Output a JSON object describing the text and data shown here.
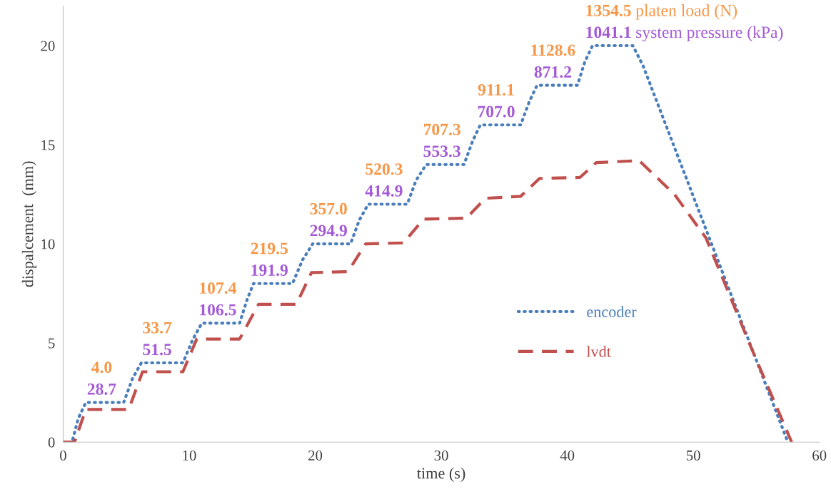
{
  "chart_data": {
    "type": "line",
    "xlabel": "time (s)",
    "ylabel": "dispalcement  (mm)",
    "xlim": [
      0,
      60
    ],
    "xticks": [
      0,
      10,
      20,
      30,
      40,
      50,
      60
    ],
    "ylim": [
      0,
      22
    ],
    "yticks": [
      0,
      5,
      10,
      15,
      20
    ],
    "grid": false,
    "legend": "center right",
    "series": [
      {
        "name": "encoder",
        "color": "#4a7ebb",
        "line_style": "dotted",
        "x": [
          0,
          0.7,
          1.2,
          1.8,
          4.8,
          5.5,
          6.2,
          9.5,
          10.3,
          11.0,
          14.0,
          14.6,
          15.1,
          18.2,
          19.0,
          19.8,
          22.8,
          23.5,
          24.2,
          27.3,
          28.0,
          28.8,
          31.8,
          32.5,
          33.1,
          36.3,
          37.0,
          37.6,
          40.8,
          41.4,
          42.0,
          45.2,
          46.0,
          57.5
        ],
        "values": [
          0,
          0,
          1.2,
          2,
          2,
          3.2,
          4,
          4,
          5.2,
          6,
          6,
          7.2,
          8,
          8,
          9.2,
          10,
          10,
          11.2,
          12,
          12,
          13.2,
          14,
          14,
          15.2,
          16,
          16,
          17.2,
          18,
          18,
          19.2,
          20,
          20,
          19.0,
          0
        ]
      },
      {
        "name": "lvdt",
        "color": "#c0504d",
        "line_style": "dashed",
        "x": [
          0,
          0.9,
          1.8,
          5.2,
          6.3,
          9.5,
          10.6,
          14.0,
          15.5,
          18.5,
          19.7,
          22.6,
          24.0,
          27.0,
          28.6,
          32.0,
          33.5,
          36.3,
          37.8,
          41.0,
          42.3,
          45.7,
          48.5,
          51.0,
          52.5,
          54.5,
          57.8
        ],
        "values": [
          0,
          0,
          1.65,
          1.65,
          3.55,
          3.55,
          5.2,
          5.2,
          6.95,
          6.95,
          8.55,
          8.6,
          10.0,
          10.05,
          11.25,
          11.3,
          12.3,
          12.4,
          13.3,
          13.35,
          14.1,
          14.2,
          12.5,
          10.3,
          8.0,
          4.9,
          0
        ]
      }
    ],
    "annotations": [
      {
        "text": "4.0",
        "x": 1.8,
        "y": 2
      },
      {
        "text": "28.7",
        "x": 1.8,
        "y": 2
      },
      {
        "text": "33.7",
        "x": 6.2,
        "y": 4
      },
      {
        "text": "51.5",
        "x": 6.2,
        "y": 4
      },
      {
        "text": "107.4",
        "x": 11.0,
        "y": 6
      },
      {
        "text": "106.5",
        "x": 11.0,
        "y": 6
      },
      {
        "text": "219.5",
        "x": 15.1,
        "y": 8
      },
      {
        "text": "191.9",
        "x": 15.1,
        "y": 8
      },
      {
        "text": "357.0",
        "x": 19.8,
        "y": 10
      },
      {
        "text": "294.9",
        "x": 19.8,
        "y": 10
      },
      {
        "text": "520.3",
        "x": 24.2,
        "y": 12
      },
      {
        "text": "414.9",
        "x": 24.2,
        "y": 12
      },
      {
        "text": "707.3",
        "x": 28.8,
        "y": 14
      },
      {
        "text": "553.3",
        "x": 28.8,
        "y": 14
      },
      {
        "text": "911.1",
        "x": 33.1,
        "y": 16
      },
      {
        "text": "707.0",
        "x": 33.1,
        "y": 16
      },
      {
        "text": "1128.6",
        "x": 37.6,
        "y": 18
      },
      {
        "text": "871.2",
        "x": 37.6,
        "y": 18
      },
      {
        "text": "1354.5",
        "x": 42.0,
        "y": 20
      },
      {
        "text": "1041.1",
        "x": 42.0,
        "y": 20
      },
      "platen load (N)",
      "system pressure (kPa)"
    ]
  }
}
